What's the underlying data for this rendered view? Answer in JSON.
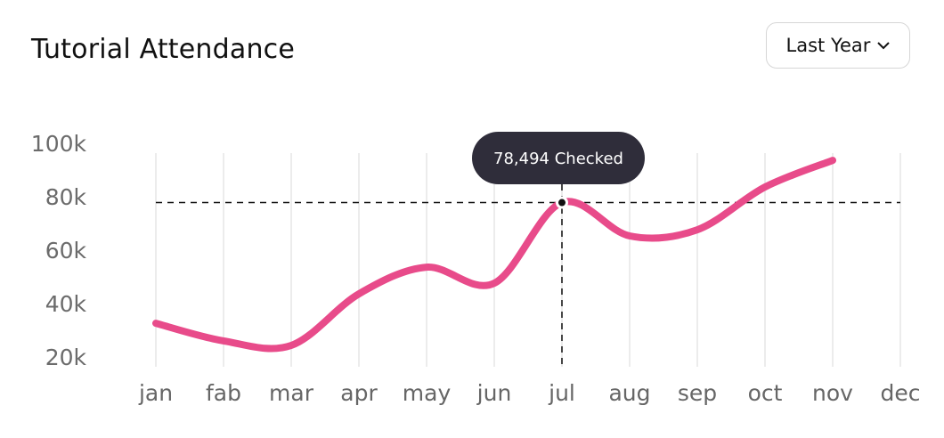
{
  "controls": {
    "period": "Last Year"
  },
  "chart_data": {
    "type": "line",
    "title": "Tutorial Attendance",
    "categories": [
      "jan",
      "fab",
      "mar",
      "apr",
      "may",
      "jun",
      "jul",
      "aug",
      "sep",
      "oct",
      "nov",
      "dec"
    ],
    "values": [
      33300,
      26700,
      25000,
      44300,
      54300,
      48300,
      78494,
      66000,
      68300,
      84300,
      94300,
      null
    ],
    "value_labels": [
      null,
      null,
      null,
      null,
      null,
      null,
      "78,494 Checked",
      null,
      null,
      null,
      null,
      null
    ],
    "color": "#e84b8a",
    "ylim": [
      20000,
      100000
    ],
    "yticks": [
      {
        "value": 20000,
        "label": "20k"
      },
      {
        "value": 40000,
        "label": "40k"
      },
      {
        "value": 60000,
        "label": "60k"
      },
      {
        "value": 80000,
        "label": "80k"
      },
      {
        "value": 100000,
        "label": "100k"
      }
    ],
    "grid": true
  }
}
